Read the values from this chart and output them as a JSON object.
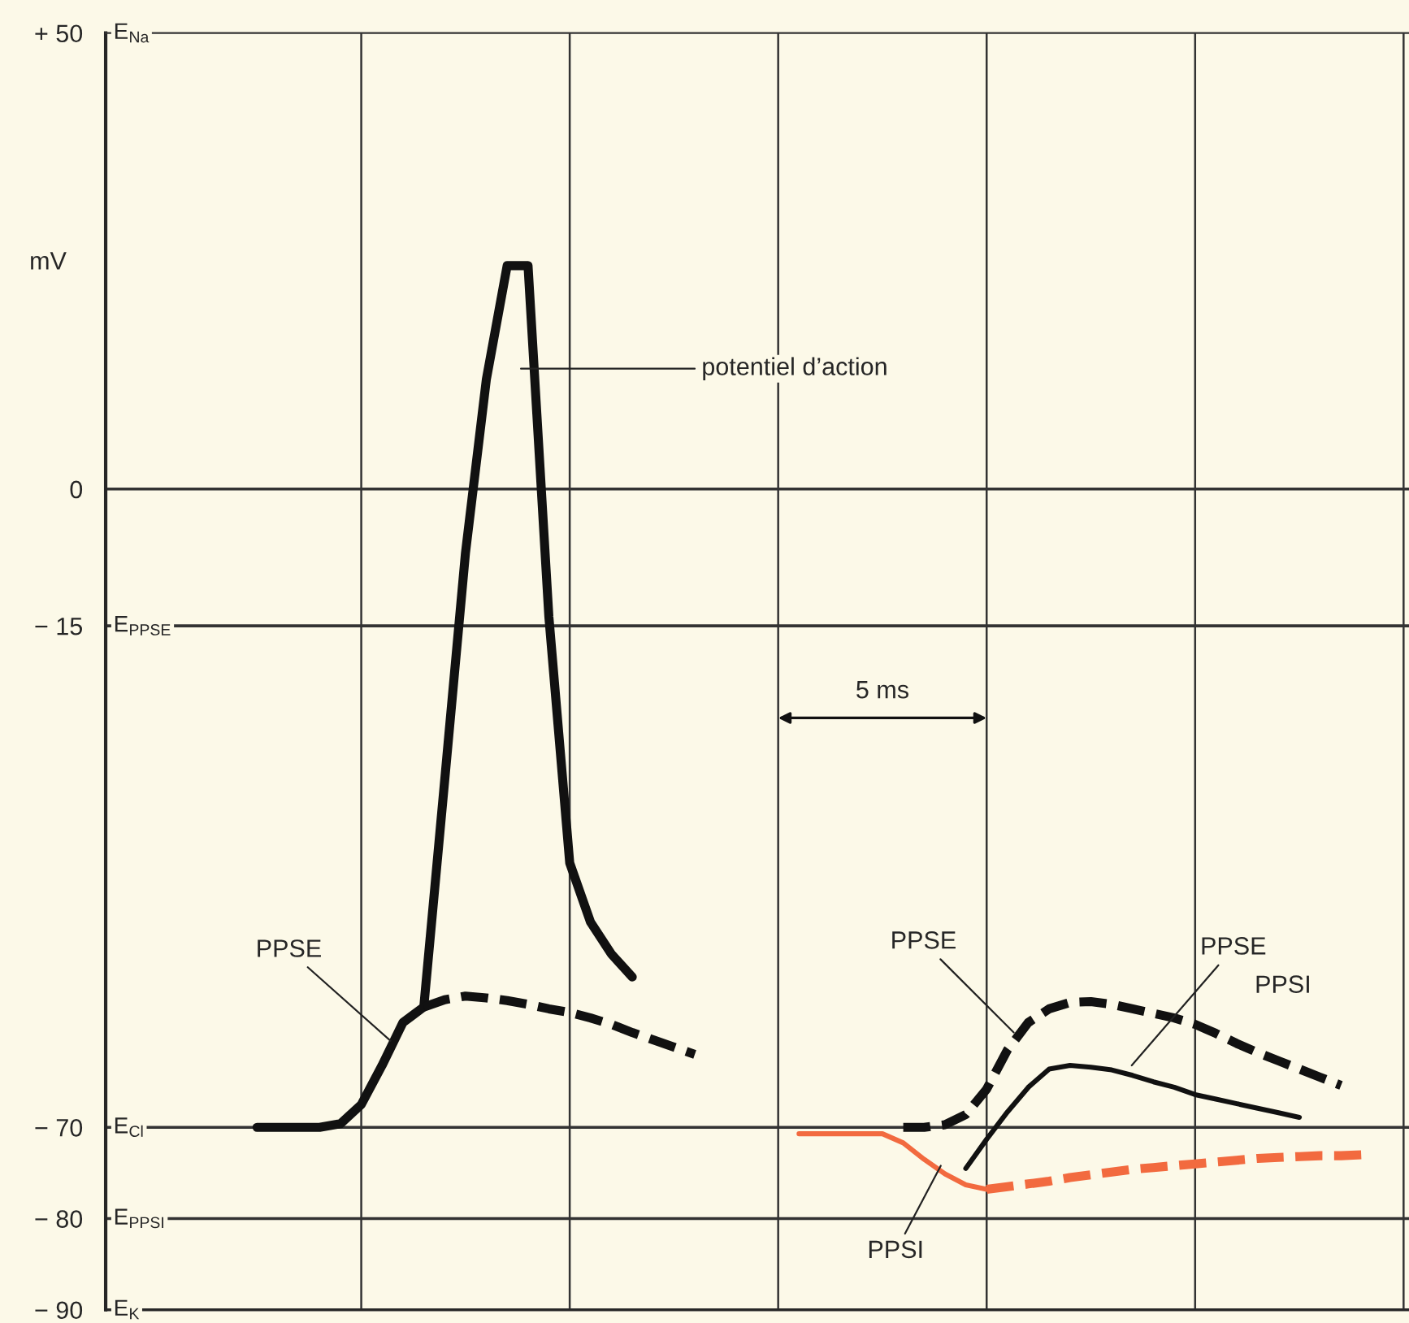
{
  "chart_data": {
    "type": "line",
    "ylabel": "mV",
    "ylim": [
      -90,
      50
    ],
    "categories": [
      null,
      null,
      null,
      null,
      null,
      null,
      null,
      null,
      null,
      null,
      null,
      null,
      null,
      null,
      null,
      null,
      null,
      null,
      null,
      null,
      null,
      null,
      null,
      null,
      null,
      null,
      null,
      null,
      null,
      null,
      null,
      null,
      null,
      null,
      null,
      null,
      null,
      null,
      null,
      null,
      null,
      null,
      null,
      null,
      null,
      null,
      null,
      null,
      null,
      null,
      null,
      null,
      null,
      null,
      null,
      null,
      null,
      null,
      null,
      null,
      null,
      null,
      null
    ],
    "yticks": [
      {
        "value": 50,
        "label": "+ 50"
      },
      0,
      {
        "value": -15,
        "label": "− 15"
      },
      {
        "value": -70,
        "label": "− 70"
      },
      {
        "value": -80,
        "label": "− 80"
      },
      {
        "value": -90,
        "label": "− 90"
      }
    ],
    "tick_labels": "y",
    "grid": "x",
    "ref_lines": [
      {
        "axis": "y",
        "value": 0,
        "label": null
      },
      {
        "axis": "y",
        "value": -15,
        "label": "E$_{PPSE}$"
      },
      {
        "axis": "y",
        "value": -70,
        "label": "E$_{Cl}$"
      },
      {
        "axis": "y",
        "value": -80,
        "label": "E$_{PPSI}$"
      },
      {
        "axis": "y",
        "value": -90,
        "label": "E$_{K}$"
      }
    ],
    "series": [
      {
        "color": "#111111",
        "line_style": "solid",
        "values": [
          null,
          null,
          null,
          null,
          null,
          null,
          null,
          -70,
          -70,
          -70,
          -70,
          -69.6,
          -67.5,
          -63.2,
          -58.5,
          -56.8,
          -32,
          -7,
          12,
          24.5,
          24.5,
          -14,
          -41,
          -47.5,
          -51,
          -53.5,
          null,
          null,
          null,
          null,
          null,
          null,
          null,
          null,
          null,
          null,
          null,
          null,
          null,
          null,
          null,
          null,
          null,
          null,
          null,
          null,
          null,
          null,
          null,
          null,
          null,
          null,
          null,
          null,
          null,
          null,
          null,
          null,
          null,
          null,
          null,
          null,
          null
        ]
      },
      {
        "color": "#111111",
        "line_style": "dashed",
        "values": [
          null,
          null,
          null,
          null,
          null,
          null,
          null,
          null,
          null,
          null,
          null,
          null,
          null,
          null,
          null,
          -56.8,
          -56,
          -55.6,
          -55.8,
          -56.1,
          -56.5,
          -57,
          -57.4,
          -58,
          -58.7,
          -59.6,
          -60.4,
          -61.2,
          -62,
          null,
          null,
          null,
          null,
          null,
          null,
          null,
          null,
          null,
          null,
          null,
          null,
          null,
          null,
          null,
          null,
          null,
          null,
          null,
          null,
          null,
          null,
          null,
          null,
          null,
          null,
          null,
          null,
          null,
          null,
          null,
          null,
          null,
          null
        ]
      },
      {
        "color": "#111111",
        "line_style": "dashed",
        "values": [
          null,
          null,
          null,
          null,
          null,
          null,
          null,
          null,
          null,
          null,
          null,
          null,
          null,
          null,
          null,
          null,
          null,
          null,
          null,
          null,
          null,
          null,
          null,
          null,
          null,
          null,
          null,
          null,
          null,
          null,
          null,
          null,
          null,
          null,
          null,
          null,
          null,
          null,
          -70,
          -70,
          -69.7,
          -68.6,
          -65.8,
          -61.5,
          -58.5,
          -57,
          -56.3,
          -56.2,
          -56.5,
          -57,
          -57.5,
          -58,
          -58.7,
          -59.7,
          -60.8,
          -61.8,
          -62.7,
          -63.6,
          -64.5,
          -65.4,
          null,
          null,
          null
        ]
      },
      {
        "color": "#111111",
        "line_style": "solid",
        "values": [
          null,
          null,
          null,
          null,
          null,
          null,
          null,
          null,
          null,
          null,
          null,
          null,
          null,
          null,
          null,
          null,
          null,
          null,
          null,
          null,
          null,
          null,
          null,
          null,
          null,
          null,
          null,
          null,
          null,
          null,
          null,
          null,
          null,
          null,
          null,
          null,
          null,
          null,
          null,
          null,
          null,
          -74.5,
          -71.3,
          -68.3,
          -65.6,
          -63.6,
          -63.2,
          -63.4,
          -63.7,
          -64.3,
          -65,
          -65.6,
          -66.4,
          -66.9,
          -67.4,
          -67.9,
          -68.4,
          -68.9,
          null,
          null,
          null,
          null,
          null
        ]
      },
      {
        "color": "#f26a3f",
        "line_style": "solid",
        "values": [
          null,
          null,
          null,
          null,
          null,
          null,
          null,
          null,
          null,
          null,
          null,
          null,
          null,
          null,
          null,
          null,
          null,
          null,
          null,
          null,
          null,
          null,
          null,
          null,
          null,
          null,
          null,
          null,
          null,
          null,
          null,
          null,
          null,
          -70.7,
          -70.7,
          -70.7,
          -70.7,
          -70.7,
          -71.7,
          -73.5,
          -75.1,
          -76.3,
          -76.8,
          null,
          null,
          null,
          null,
          null,
          null,
          null,
          null,
          null,
          null,
          null,
          null,
          null,
          null,
          null,
          null,
          null,
          null,
          null,
          null
        ]
      },
      {
        "color": "#f26a3f",
        "line_style": "dashed",
        "values": [
          null,
          null,
          null,
          null,
          null,
          null,
          null,
          null,
          null,
          null,
          null,
          null,
          null,
          null,
          null,
          null,
          null,
          null,
          null,
          null,
          null,
          null,
          null,
          null,
          null,
          null,
          null,
          null,
          null,
          null,
          null,
          null,
          null,
          null,
          null,
          null,
          null,
          null,
          null,
          null,
          null,
          null,
          -76.8,
          -76.5,
          -76.2,
          -75.9,
          -75.5,
          -75.2,
          -74.9,
          -74.6,
          -74.4,
          -74.2,
          -74,
          -73.8,
          -73.6,
          -73.4,
          -73.3,
          -73.2,
          -73.1,
          -73.1,
          -73,
          null,
          null
        ]
      }
    ],
    "annotations": [
      "potentiel d’action",
      "PPSE",
      "5 ms",
      "PPSE",
      "PPSE",
      "PPSI",
      "PPSI",
      "E$_{Na}$"
    ]
  }
}
